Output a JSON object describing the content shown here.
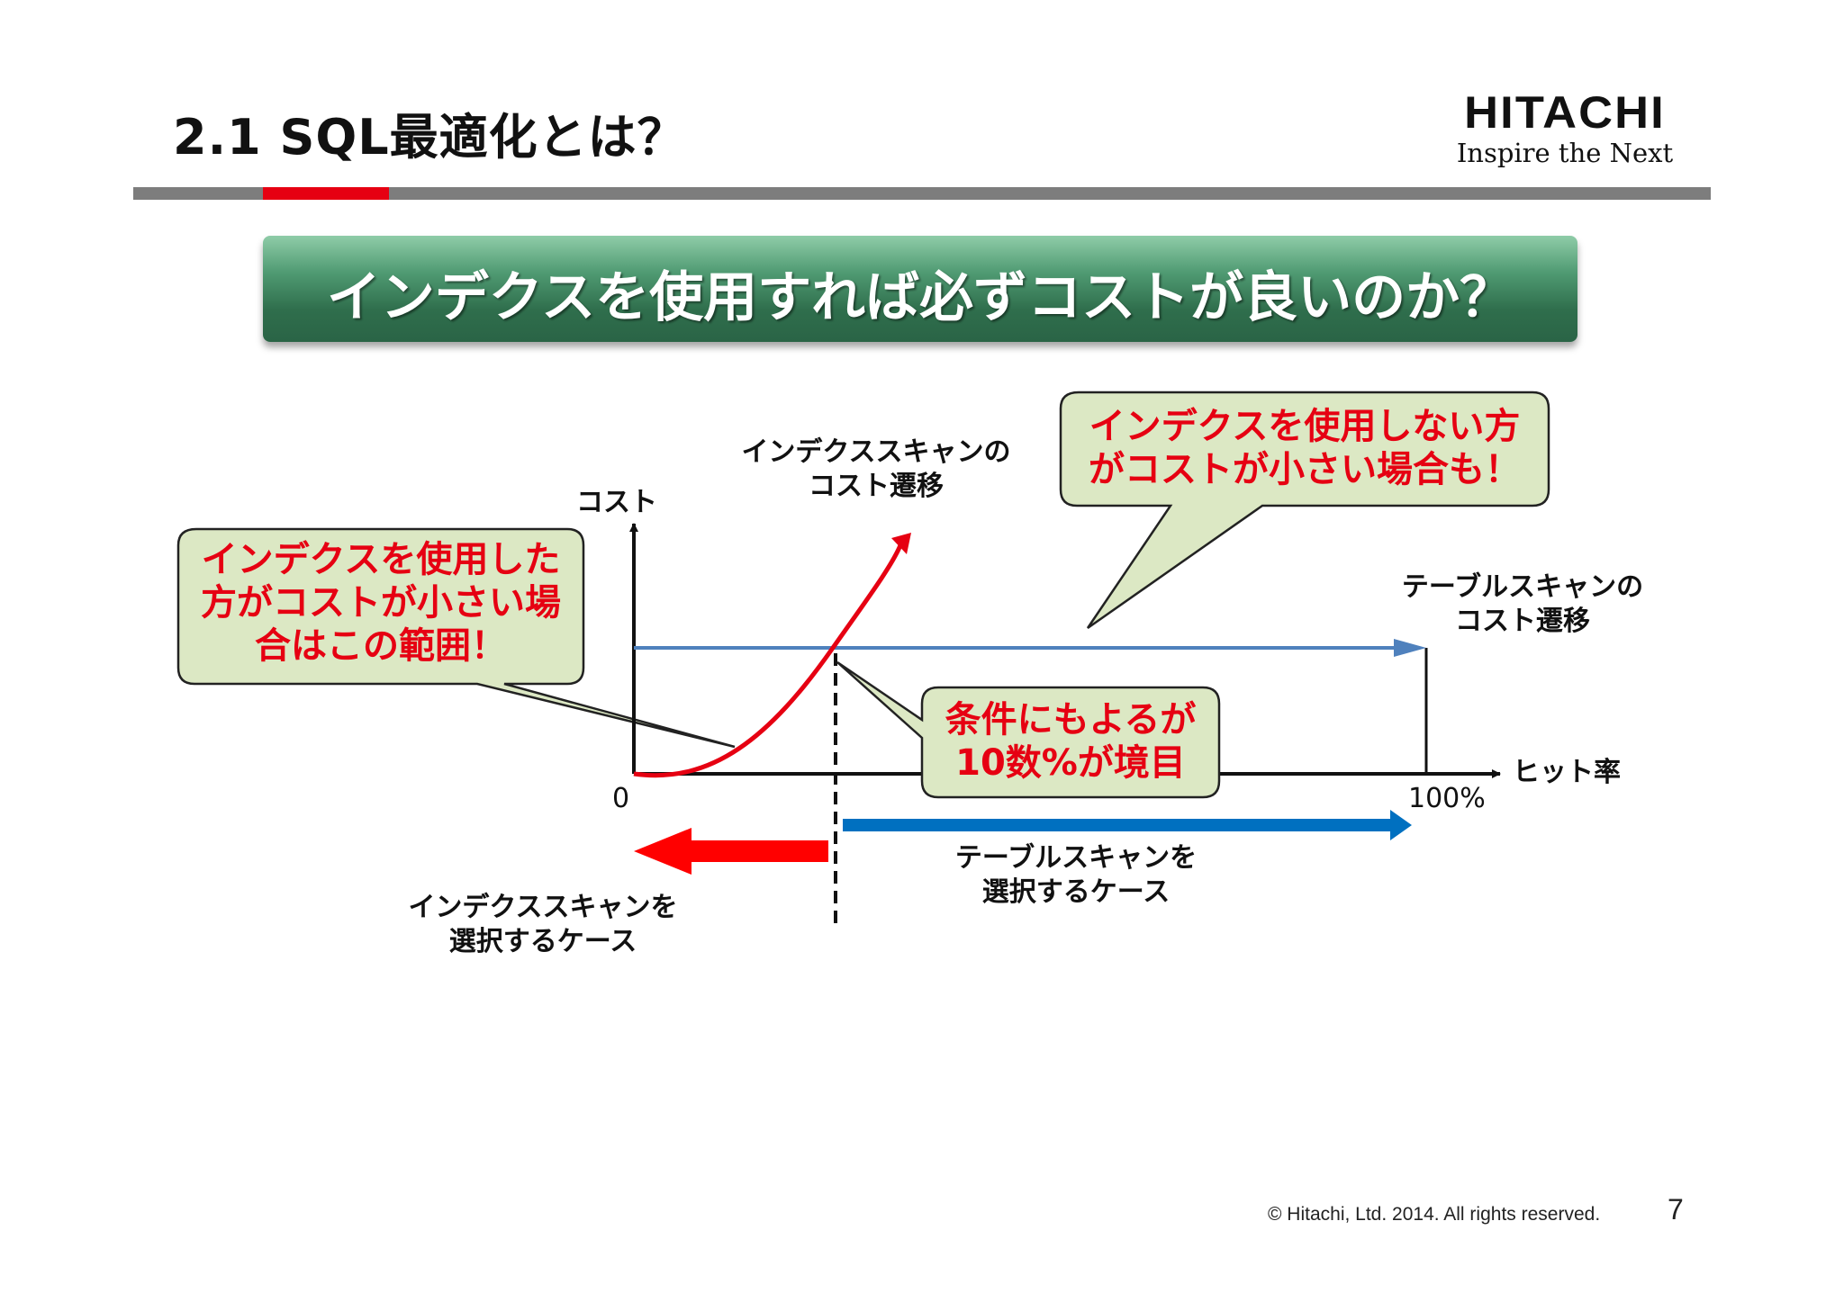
{
  "header": {
    "title": "2.1  SQL最適化とは？",
    "logo_main": "HITACHI",
    "logo_sub": "Inspire the Next"
  },
  "banner": {
    "text": "インデクスを使用すれば必ずコストが良いのか？"
  },
  "diagram": {
    "y_axis_label": "コスト",
    "x_axis_label": "ヒット率",
    "origin_label": "0",
    "x_max_label": "100%",
    "index_curve_label": [
      "インデクススキャンの",
      "コスト遷移"
    ],
    "table_line_label": [
      "テーブルスキャンの",
      "コスト遷移"
    ],
    "index_case_label": [
      "インデクススキャンを",
      "選択するケース"
    ],
    "table_case_label": [
      "テーブルスキャンを",
      "選択するケース"
    ],
    "callout_index_better": [
      "インデクスを使用した",
      "方がコストが小さい場",
      "合はこの範囲！"
    ],
    "callout_no_index": [
      "インデクスを使用しない方",
      "がコストが小さい場合も！"
    ],
    "callout_boundary": [
      "条件にもよるが",
      "10数%が境目"
    ]
  },
  "colors": {
    "accent_red": "#e60012",
    "table_line_blue": "#4f81bd",
    "arrow_blue": "#0070c0",
    "callout_fill": "#dce8c4",
    "banner_green": "#2f6e4c"
  },
  "footer": {
    "copyright": "© Hitachi, Ltd. 2014. All rights reserved.",
    "page": "7"
  }
}
